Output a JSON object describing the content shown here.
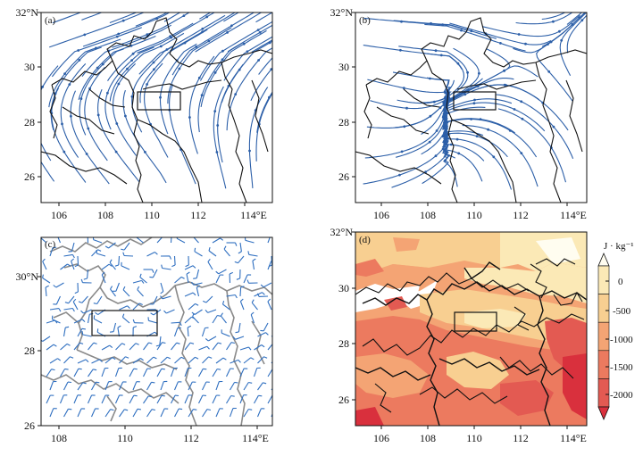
{
  "panels": [
    {
      "id": "a",
      "label": "(a)",
      "kind": "streamline",
      "x_ticks": [
        "106",
        "108",
        "110",
        "112",
        "114°E"
      ],
      "y_ticks": [
        "26",
        "28",
        "30",
        "32°N"
      ]
    },
    {
      "id": "b",
      "label": "(b)",
      "kind": "streamline",
      "x_ticks": [
        "106",
        "108",
        "110",
        "112",
        "114°E"
      ],
      "y_ticks": [
        "26",
        "28",
        "30",
        "32°N"
      ]
    },
    {
      "id": "c",
      "label": "(c)",
      "kind": "wind-barbs",
      "x_ticks": [
        "108",
        "110",
        "112",
        "114°E"
      ],
      "y_ticks": [
        "26",
        "28",
        "30°N"
      ]
    },
    {
      "id": "d",
      "label": "(d)",
      "kind": "filled-contour",
      "x_ticks": [
        "106",
        "108",
        "110",
        "112",
        "114°E"
      ],
      "y_ticks": [
        "26",
        "28",
        "30",
        "32°N"
      ]
    }
  ],
  "colorbar": {
    "unit": "J · kg⁻¹",
    "ticks": [
      "0",
      "-500",
      "-1000",
      "-1500",
      "-2000"
    ],
    "colors": [
      "#fffdf0",
      "#fbe9b6",
      "#f8cf91",
      "#f4a474",
      "#ec7a5f",
      "#e35a52",
      "#d9303d"
    ]
  },
  "colors": {
    "streamline": "#2c5fa8",
    "barb": "#2f6fc0",
    "boundary": "#111111",
    "boundary_grey": "#8a8a8a",
    "box": "#111111"
  }
}
